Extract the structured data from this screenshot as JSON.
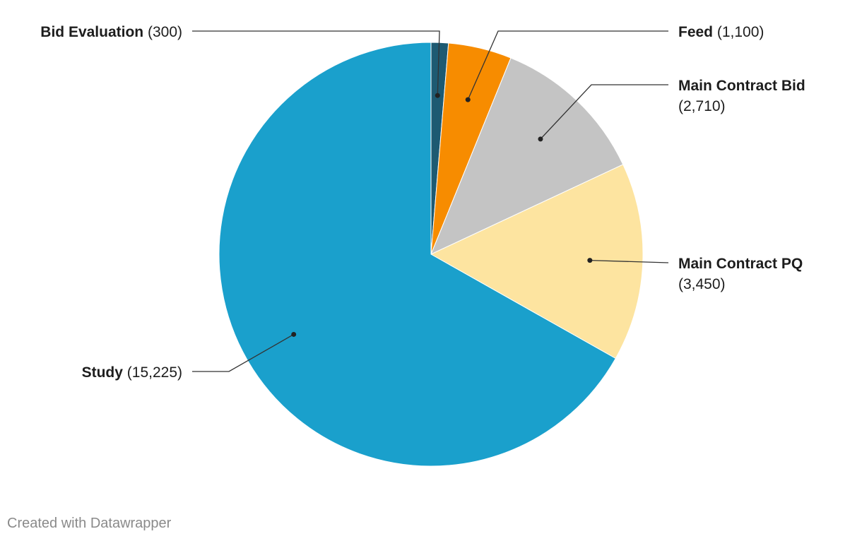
{
  "chart_data": {
    "type": "pie",
    "title": "",
    "slices": [
      {
        "label": "Bid Evaluation",
        "value": 300,
        "value_text": "(300)",
        "color": "#1d5a72"
      },
      {
        "label": "Feed",
        "value": 1100,
        "value_text": "(1,100)",
        "color": "#f78c00"
      },
      {
        "label": "Main Contract Bid",
        "value": 2710,
        "value_text": "(2,710)",
        "color": "#c4c4c4"
      },
      {
        "label": "Main Contract PQ",
        "value": 3450,
        "value_text": "(3,450)",
        "color": "#fde4a0"
      },
      {
        "label": "Study",
        "value": 15225,
        "value_text": "(15,225)",
        "color": "#1aa0cc"
      }
    ],
    "start_angle": "12 o'clock",
    "direction": "clockwise",
    "labels": "outside with leader lines"
  },
  "footer": {
    "credit": "Created with Datawrapper"
  }
}
